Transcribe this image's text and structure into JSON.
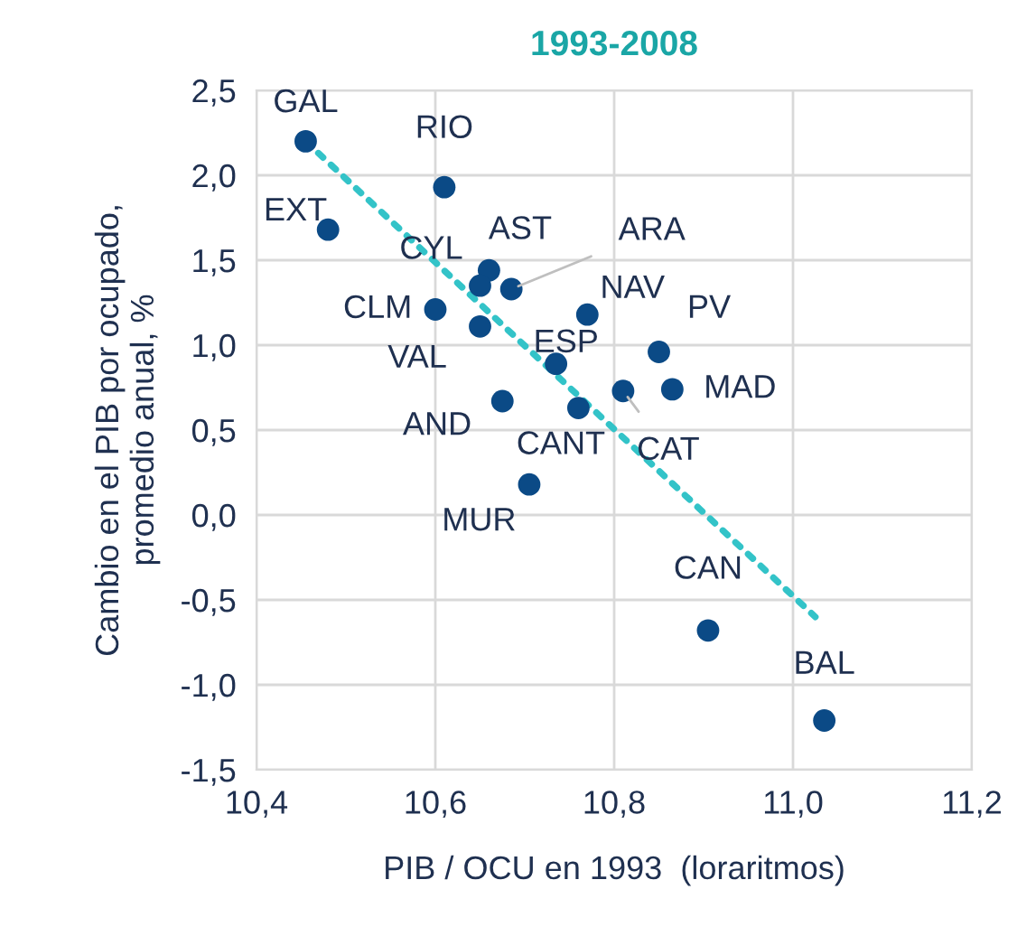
{
  "chart_data": {
    "type": "scatter",
    "title": "1993-2008",
    "xlabel": "PIB / OCU en 1993  (loraritmos)",
    "ylabel": "Cambio en el PIB por ocupado,\npromedio anual, %",
    "series": [
      {
        "color": "#0b4a86",
        "marker": "circle",
        "x": [
          10.455,
          10.61,
          10.48,
          10.66,
          10.65,
          10.685,
          10.6,
          10.65,
          10.77,
          10.85,
          10.735,
          10.865,
          10.81,
          10.675,
          10.76,
          10.705,
          10.905,
          11.035
        ],
        "values": [
          2.2,
          1.93,
          1.68,
          1.44,
          1.35,
          1.33,
          1.21,
          1.11,
          1.18,
          0.96,
          0.89,
          0.74,
          0.73,
          0.67,
          0.63,
          0.18,
          -0.68,
          -1.21
        ]
      },
      {
        "type": "line",
        "color": "#33c3c8",
        "line_style": "dotted",
        "x": [
          10.455,
          11.025
        ],
        "values": [
          2.2,
          -0.6
        ]
      }
    ],
    "annotations": [
      {
        "text": "GAL",
        "x": 10.455,
        "y": 2.2
      },
      {
        "text": "RIO",
        "x": 10.61,
        "y": 1.93
      },
      {
        "text": "EXT",
        "x": 10.48,
        "y": 1.68
      },
      {
        "text": "CYL",
        "x": 10.66,
        "y": 1.44
      },
      {
        "text": "AST",
        "x": 10.65,
        "y": 1.35
      },
      {
        "text": "ARA",
        "x": 10.685,
        "y": 1.33
      },
      {
        "text": "CLM",
        "x": 10.6,
        "y": 1.21
      },
      {
        "text": "VAL",
        "x": 10.65,
        "y": 1.11
      },
      {
        "text": "NAV",
        "x": 10.77,
        "y": 1.18
      },
      {
        "text": "PV",
        "x": 10.85,
        "y": 0.96
      },
      {
        "text": "ESP",
        "x": 10.735,
        "y": 0.89
      },
      {
        "text": "MAD",
        "x": 10.865,
        "y": 0.74
      },
      {
        "text": "CAT",
        "x": 10.81,
        "y": 0.73
      },
      {
        "text": "AND",
        "x": 10.675,
        "y": 0.67
      },
      {
        "text": "CANT",
        "x": 10.76,
        "y": 0.63
      },
      {
        "text": "MUR",
        "x": 10.705,
        "y": 0.18
      },
      {
        "text": "CAN",
        "x": 10.905,
        "y": -0.68
      },
      {
        "text": "BAL",
        "x": 11.035,
        "y": -1.21
      }
    ],
    "xlim": [
      10.4,
      11.2
    ],
    "xticks": [
      {
        "value": 10.4,
        "label": "10,4"
      },
      {
        "value": 10.6,
        "label": "10,6"
      },
      {
        "value": 10.8,
        "label": "10,8"
      },
      {
        "value": 11.0,
        "label": "11,0"
      },
      {
        "value": 11.2,
        "label": "11,2"
      }
    ],
    "ylim": [
      -1.5,
      2.5
    ],
    "yticks": [
      {
        "value": -1.5,
        "label": "-1,5"
      },
      {
        "value": -1.0,
        "label": "-1,0"
      },
      {
        "value": -0.5,
        "label": "-0,5"
      },
      {
        "value": 0.0,
        "label": "0,0"
      },
      {
        "value": 0.5,
        "label": "0,5"
      },
      {
        "value": 1.0,
        "label": "1,0"
      },
      {
        "value": 1.5,
        "label": "1,5"
      },
      {
        "value": 2.0,
        "label": "2,0"
      },
      {
        "value": 2.5,
        "label": "2,5"
      }
    ],
    "grid": true,
    "legend": false
  }
}
